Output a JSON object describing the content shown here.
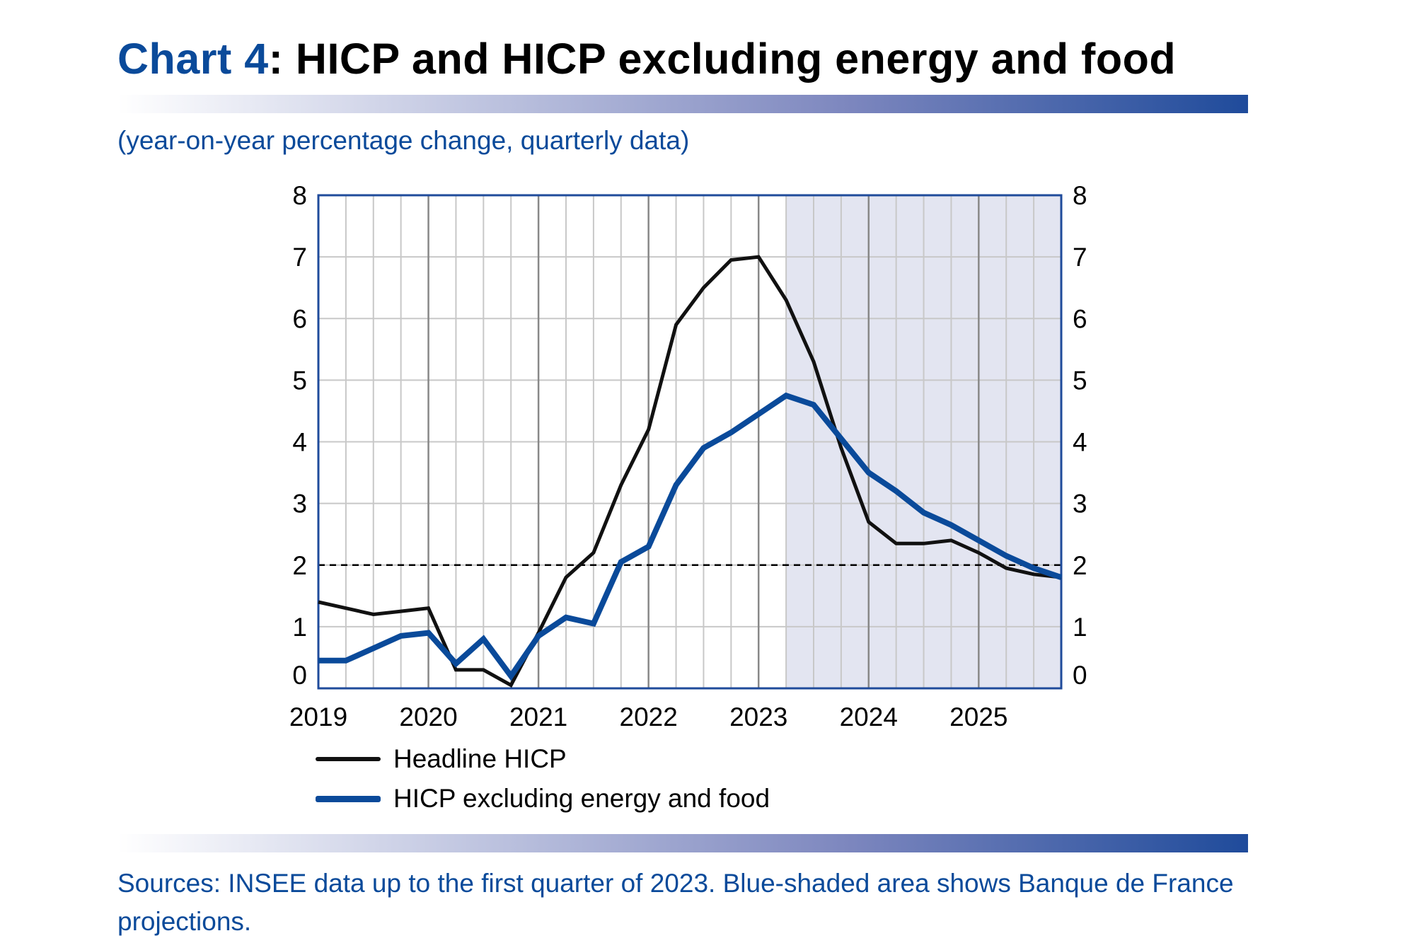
{
  "header": {
    "chart_number": "Chart 4",
    "title_rest": ": HICP and HICP excluding energy and food",
    "subtitle": "(year-on-year percentage change, quarterly data)"
  },
  "footer": {
    "sources": "Sources: INSEE data up to the first quarter of 2023. Blue-shaded area shows Banque de France projections."
  },
  "colors": {
    "headline": "#111111",
    "core": "#0a4a9a",
    "projection_shade": "#e3e5f1",
    "frame": "#1f4b9b",
    "grid": "#c8c8c8",
    "year_grid": "#888888",
    "target_line": "#000000"
  },
  "chart_data": {
    "type": "line",
    "title": "HICP and HICP excluding energy and food",
    "subtitle": "(year-on-year percentage change, quarterly data)",
    "xlabel": "",
    "ylabel": "",
    "x_tick_labels": [
      "2019",
      "2020",
      "2021",
      "2022",
      "2023",
      "2024",
      "2025"
    ],
    "x_start": 2019.0,
    "x_end": 2025.75,
    "quarters_per_year": 4,
    "ylim": [
      0,
      8
    ],
    "y_ticks": [
      0,
      1,
      2,
      3,
      4,
      5,
      6,
      7,
      8
    ],
    "dual_y_axis": true,
    "grid": true,
    "reference_line": {
      "y": 2,
      "style": "dashed"
    },
    "projection_area": {
      "from": 2023.25,
      "to": 2025.75
    },
    "legend_position": "bottom",
    "series": [
      {
        "name": "Headline HICP",
        "x": [
          2019.0,
          2019.25,
          2019.5,
          2019.75,
          2020.0,
          2020.25,
          2020.5,
          2020.75,
          2021.0,
          2021.25,
          2021.5,
          2021.75,
          2022.0,
          2022.25,
          2022.5,
          2022.75,
          2023.0,
          2023.25,
          2023.5,
          2023.75,
          2024.0,
          2024.25,
          2024.5,
          2024.75,
          2025.0,
          2025.25,
          2025.5,
          2025.75
        ],
        "values": [
          1.4,
          1.3,
          1.2,
          1.25,
          1.3,
          0.3,
          0.3,
          0.05,
          0.9,
          1.8,
          2.2,
          3.3,
          4.2,
          5.9,
          6.5,
          6.95,
          7.0,
          6.3,
          5.3,
          3.9,
          2.7,
          2.35,
          2.35,
          2.4,
          2.2,
          1.95,
          1.85,
          1.8
        ]
      },
      {
        "name": "HICP excluding energy and food",
        "x": [
          2019.0,
          2019.25,
          2019.5,
          2019.75,
          2020.0,
          2020.25,
          2020.5,
          2020.75,
          2021.0,
          2021.25,
          2021.5,
          2021.75,
          2022.0,
          2022.25,
          2022.5,
          2022.75,
          2023.0,
          2023.25,
          2023.5,
          2023.75,
          2024.0,
          2024.25,
          2024.5,
          2024.75,
          2025.0,
          2025.25,
          2025.5,
          2025.75
        ],
        "values": [
          0.45,
          0.45,
          0.65,
          0.85,
          0.9,
          0.4,
          0.8,
          0.2,
          0.85,
          1.15,
          1.05,
          2.05,
          2.3,
          3.3,
          3.9,
          4.15,
          4.45,
          4.75,
          4.6,
          4.05,
          3.5,
          3.2,
          2.85,
          2.65,
          2.4,
          2.15,
          1.95,
          1.8
        ]
      }
    ]
  }
}
